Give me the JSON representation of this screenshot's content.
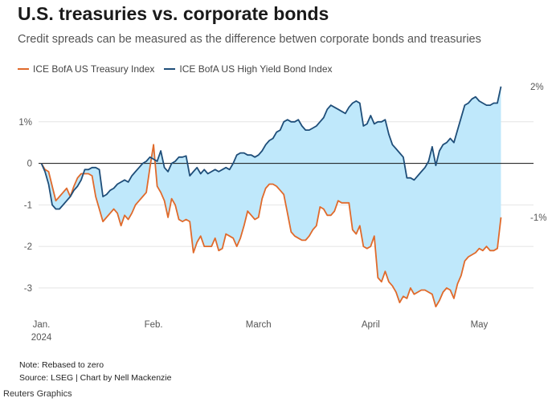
{
  "header": {
    "title": "U.S. treasuries vs. corporate bonds",
    "subtitle": "Credit spreads can be measured as the difference betwen corporate bonds and treasuries"
  },
  "legend": [
    {
      "label": "ICE BofA US Treasury Index",
      "color": "#e06a2b"
    },
    {
      "label": "ICE BofA US High Yield Bond Index",
      "color": "#1f4e79"
    }
  ],
  "footer": {
    "note": "Note: Rebased to zero",
    "source": "Source: LSEG | Chart by Nell Mackenzie",
    "brand": "Reuters Graphics"
  },
  "chart_data": {
    "type": "line",
    "y_ticks": [
      {
        "value": 1,
        "label": "1%"
      },
      {
        "value": 0,
        "label": "0"
      },
      {
        "value": -1,
        "label": "-1"
      },
      {
        "value": -2,
        "label": "-2"
      },
      {
        "value": -3,
        "label": "-3"
      }
    ],
    "ylim": [
      -3.6,
      2.0
    ],
    "x_ticks": [
      {
        "value": 0,
        "label": "Jan.",
        "sublabel": "2024"
      },
      {
        "value": 31,
        "label": "Feb.",
        "sublabel": ""
      },
      {
        "value": 60,
        "label": "March",
        "sublabel": ""
      },
      {
        "value": 91,
        "label": "April",
        "sublabel": ""
      },
      {
        "value": 121,
        "label": "May",
        "sublabel": ""
      }
    ],
    "xlim": [
      -1,
      136
    ],
    "end_labels": {
      "high_yield": "2%",
      "treasury": "-1%"
    },
    "fill_color": "#bfe8fb",
    "zero_line": true,
    "series": [
      {
        "key": "high_yield",
        "name": "ICE BofA US High Yield Bond Index",
        "color": "#1f4e79",
        "points": [
          [
            0,
            0
          ],
          [
            1,
            -0.2
          ],
          [
            2,
            -0.5
          ],
          [
            3,
            -1.0
          ],
          [
            4,
            -1.1
          ],
          [
            5,
            -1.1
          ],
          [
            6,
            -1.0
          ],
          [
            7,
            -0.9
          ],
          [
            8,
            -0.8
          ],
          [
            9,
            -0.65
          ],
          [
            10,
            -0.55
          ],
          [
            11,
            -0.4
          ],
          [
            12,
            -0.15
          ],
          [
            13,
            -0.15
          ],
          [
            14,
            -0.1
          ],
          [
            15,
            -0.1
          ],
          [
            16,
            -0.15
          ],
          [
            17,
            -0.8
          ],
          [
            18,
            -0.75
          ],
          [
            19,
            -0.65
          ],
          [
            20,
            -0.6
          ],
          [
            21,
            -0.5
          ],
          [
            22,
            -0.45
          ],
          [
            23,
            -0.4
          ],
          [
            24,
            -0.45
          ],
          [
            25,
            -0.3
          ],
          [
            26,
            -0.2
          ],
          [
            27,
            -0.1
          ],
          [
            28,
            0
          ],
          [
            29,
            0.05
          ],
          [
            30,
            0.15
          ],
          [
            31,
            0.1
          ],
          [
            32,
            0.05
          ],
          [
            33,
            0.3
          ],
          [
            34,
            -0.1
          ],
          [
            35,
            -0.2
          ],
          [
            36,
            0.0
          ],
          [
            37,
            0.05
          ],
          [
            38,
            0.15
          ],
          [
            39,
            0.15
          ],
          [
            40,
            0.18
          ],
          [
            41,
            -0.3
          ],
          [
            42,
            -0.2
          ],
          [
            43,
            -0.1
          ],
          [
            44,
            -0.25
          ],
          [
            45,
            -0.15
          ],
          [
            46,
            -0.25
          ],
          [
            47,
            -0.2
          ],
          [
            48,
            -0.15
          ],
          [
            49,
            -0.2
          ],
          [
            50,
            -0.15
          ],
          [
            51,
            -0.1
          ],
          [
            52,
            -0.15
          ],
          [
            53,
            0
          ],
          [
            54,
            0.2
          ],
          [
            55,
            0.25
          ],
          [
            56,
            0.25
          ],
          [
            57,
            0.2
          ],
          [
            58,
            0.2
          ],
          [
            59,
            0.15
          ],
          [
            60,
            0.2
          ],
          [
            61,
            0.3
          ],
          [
            62,
            0.45
          ],
          [
            63,
            0.55
          ],
          [
            64,
            0.6
          ],
          [
            65,
            0.75
          ],
          [
            66,
            0.8
          ],
          [
            67,
            1.0
          ],
          [
            68,
            1.05
          ],
          [
            69,
            1.0
          ],
          [
            70,
            1.0
          ],
          [
            71,
            1.05
          ],
          [
            72,
            0.9
          ],
          [
            73,
            0.8
          ],
          [
            74,
            0.8
          ],
          [
            75,
            0.85
          ],
          [
            76,
            0.9
          ],
          [
            77,
            1.0
          ],
          [
            78,
            1.1
          ],
          [
            79,
            1.3
          ],
          [
            80,
            1.4
          ],
          [
            81,
            1.35
          ],
          [
            82,
            1.3
          ],
          [
            83,
            1.25
          ],
          [
            84,
            1.2
          ],
          [
            85,
            1.35
          ],
          [
            86,
            1.45
          ],
          [
            87,
            1.5
          ],
          [
            88,
            1.45
          ],
          [
            89,
            0.9
          ],
          [
            90,
            0.95
          ],
          [
            91,
            1.15
          ],
          [
            92,
            0.95
          ],
          [
            93,
            1.0
          ],
          [
            94,
            1.0
          ],
          [
            95,
            1.05
          ],
          [
            96,
            0.7
          ],
          [
            97,
            0.45
          ],
          [
            98,
            0.35
          ],
          [
            99,
            0.25
          ],
          [
            100,
            0.15
          ],
          [
            101,
            -0.35
          ],
          [
            102,
            -0.35
          ],
          [
            103,
            -0.4
          ],
          [
            104,
            -0.3
          ],
          [
            105,
            -0.2
          ],
          [
            106,
            -0.1
          ],
          [
            107,
            0.05
          ],
          [
            108,
            0.4
          ],
          [
            109,
            -0.05
          ],
          [
            110,
            0.3
          ],
          [
            111,
            0.45
          ],
          [
            112,
            0.5
          ],
          [
            113,
            0.6
          ],
          [
            114,
            0.5
          ],
          [
            115,
            0.8
          ],
          [
            116,
            1.1
          ],
          [
            117,
            1.4
          ],
          [
            118,
            1.45
          ],
          [
            119,
            1.55
          ],
          [
            120,
            1.6
          ],
          [
            121,
            1.5
          ],
          [
            122,
            1.45
          ],
          [
            123,
            1.4
          ],
          [
            124,
            1.4
          ],
          [
            125,
            1.45
          ],
          [
            126,
            1.45
          ],
          [
            127,
            1.85
          ]
        ]
      },
      {
        "key": "treasury",
        "name": "ICE BofA US Treasury Index",
        "color": "#e06a2b",
        "points": [
          [
            0,
            0
          ],
          [
            1,
            -0.15
          ],
          [
            2,
            -0.2
          ],
          [
            3,
            -0.55
          ],
          [
            4,
            -0.9
          ],
          [
            5,
            -0.8
          ],
          [
            6,
            -0.7
          ],
          [
            7,
            -0.6
          ],
          [
            8,
            -0.8
          ],
          [
            9,
            -0.55
          ],
          [
            10,
            -0.35
          ],
          [
            11,
            -0.25
          ],
          [
            12,
            -0.25
          ],
          [
            13,
            -0.25
          ],
          [
            14,
            -0.3
          ],
          [
            15,
            -0.8
          ],
          [
            16,
            -1.1
          ],
          [
            17,
            -1.4
          ],
          [
            18,
            -1.3
          ],
          [
            19,
            -1.2
          ],
          [
            20,
            -1.1
          ],
          [
            21,
            -1.2
          ],
          [
            22,
            -1.5
          ],
          [
            23,
            -1.25
          ],
          [
            24,
            -1.35
          ],
          [
            25,
            -1.2
          ],
          [
            26,
            -1.0
          ],
          [
            27,
            -0.9
          ],
          [
            28,
            -0.8
          ],
          [
            29,
            -0.7
          ],
          [
            30,
            -0.1
          ],
          [
            31,
            0.45
          ],
          [
            32,
            -0.55
          ],
          [
            33,
            -0.7
          ],
          [
            34,
            -0.9
          ],
          [
            35,
            -1.3
          ],
          [
            36,
            -0.85
          ],
          [
            37,
            -1.0
          ],
          [
            38,
            -1.35
          ],
          [
            39,
            -1.4
          ],
          [
            40,
            -1.35
          ],
          [
            41,
            -1.4
          ],
          [
            42,
            -2.15
          ],
          [
            43,
            -1.9
          ],
          [
            44,
            -1.75
          ],
          [
            45,
            -2.0
          ],
          [
            46,
            -2.0
          ],
          [
            47,
            -2.0
          ],
          [
            48,
            -1.8
          ],
          [
            49,
            -2.1
          ],
          [
            50,
            -2.05
          ],
          [
            51,
            -1.7
          ],
          [
            52,
            -1.75
          ],
          [
            53,
            -1.8
          ],
          [
            54,
            -2.0
          ],
          [
            55,
            -1.8
          ],
          [
            56,
            -1.5
          ],
          [
            57,
            -1.15
          ],
          [
            58,
            -1.25
          ],
          [
            59,
            -1.35
          ],
          [
            60,
            -1.3
          ],
          [
            61,
            -0.85
          ],
          [
            62,
            -0.6
          ],
          [
            63,
            -0.5
          ],
          [
            64,
            -0.5
          ],
          [
            65,
            -0.55
          ],
          [
            66,
            -0.65
          ],
          [
            67,
            -0.75
          ],
          [
            68,
            -1.2
          ],
          [
            69,
            -1.65
          ],
          [
            70,
            -1.75
          ],
          [
            71,
            -1.8
          ],
          [
            72,
            -1.85
          ],
          [
            73,
            -1.85
          ],
          [
            74,
            -1.75
          ],
          [
            75,
            -1.6
          ],
          [
            76,
            -1.5
          ],
          [
            77,
            -1.05
          ],
          [
            78,
            -1.1
          ],
          [
            79,
            -1.25
          ],
          [
            80,
            -1.25
          ],
          [
            81,
            -1.15
          ],
          [
            82,
            -0.9
          ],
          [
            83,
            -0.95
          ],
          [
            84,
            -0.95
          ],
          [
            85,
            -0.95
          ],
          [
            86,
            -1.6
          ],
          [
            87,
            -1.7
          ],
          [
            88,
            -1.5
          ],
          [
            89,
            -2.0
          ],
          [
            90,
            -2.05
          ],
          [
            91,
            -2.0
          ],
          [
            92,
            -1.75
          ],
          [
            93,
            -2.75
          ],
          [
            94,
            -2.85
          ],
          [
            95,
            -2.6
          ],
          [
            96,
            -2.85
          ],
          [
            97,
            -2.95
          ],
          [
            98,
            -3.1
          ],
          [
            99,
            -3.35
          ],
          [
            100,
            -3.2
          ],
          [
            101,
            -3.25
          ],
          [
            102,
            -3.0
          ],
          [
            103,
            -3.15
          ],
          [
            104,
            -3.1
          ],
          [
            105,
            -3.05
          ],
          [
            106,
            -3.05
          ],
          [
            107,
            -3.1
          ],
          [
            108,
            -3.15
          ],
          [
            109,
            -3.45
          ],
          [
            110,
            -3.3
          ],
          [
            111,
            -3.1
          ],
          [
            112,
            -3.0
          ],
          [
            113,
            -3.05
          ],
          [
            114,
            -3.25
          ],
          [
            115,
            -2.9
          ],
          [
            116,
            -2.7
          ],
          [
            117,
            -2.35
          ],
          [
            118,
            -2.25
          ],
          [
            119,
            -2.2
          ],
          [
            120,
            -2.15
          ],
          [
            121,
            -2.05
          ],
          [
            122,
            -2.1
          ],
          [
            123,
            -2.0
          ],
          [
            124,
            -2.1
          ],
          [
            125,
            -2.1
          ],
          [
            126,
            -2.05
          ],
          [
            127,
            -1.3
          ]
        ]
      }
    ]
  }
}
